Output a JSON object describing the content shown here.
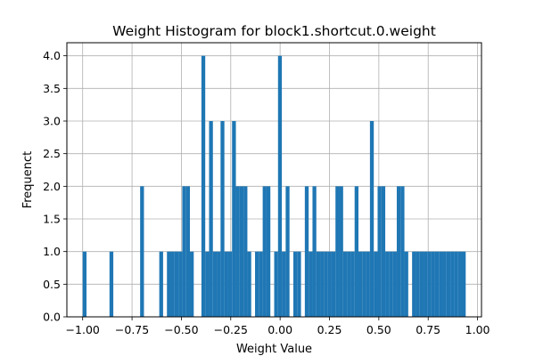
{
  "chart_data": {
    "type": "bar",
    "title": "Weight Histogram for block1.shortcut.0.weight",
    "xlabel": "Weight Value",
    "ylabel": "Frequenct",
    "xlim": [
      -1.08,
      1.02
    ],
    "ylim": [
      0,
      4.2
    ],
    "grid": true,
    "bar_color": "#1f77b4",
    "bin_edges": [
      -1.0,
      0.94
    ],
    "bin_count": 100,
    "xticks": [
      {
        "value": -1.0,
        "label": "−1.00"
      },
      {
        "value": -0.75,
        "label": "−0.75"
      },
      {
        "value": -0.5,
        "label": "−0.50"
      },
      {
        "value": -0.25,
        "label": "−0.25"
      },
      {
        "value": 0.0,
        "label": "0.00"
      },
      {
        "value": 0.25,
        "label": "0.25"
      },
      {
        "value": 0.5,
        "label": "0.50"
      },
      {
        "value": 0.75,
        "label": "0.75"
      },
      {
        "value": 1.0,
        "label": "1.00"
      }
    ],
    "yticks": [
      {
        "value": 0.0,
        "label": "0.0"
      },
      {
        "value": 0.5,
        "label": "0.5"
      },
      {
        "value": 1.0,
        "label": "1.0"
      },
      {
        "value": 1.5,
        "label": "1.5"
      },
      {
        "value": 2.0,
        "label": "2.0"
      },
      {
        "value": 2.5,
        "label": "2.5"
      },
      {
        "value": 3.0,
        "label": "3.0"
      },
      {
        "value": 3.5,
        "label": "3.5"
      },
      {
        "value": 4.0,
        "label": "4.0"
      }
    ],
    "values": [
      1,
      0,
      0,
      0,
      0,
      0,
      0,
      1,
      0,
      0,
      0,
      0,
      0,
      0,
      0,
      2,
      0,
      0,
      0,
      0,
      1,
      0,
      1,
      1,
      1,
      1,
      2,
      2,
      1,
      0,
      0,
      4,
      1,
      3,
      1,
      1,
      3,
      1,
      1,
      3,
      2,
      2,
      2,
      1,
      0,
      1,
      1,
      2,
      2,
      0,
      1,
      4,
      1,
      2,
      0,
      1,
      1,
      0,
      2,
      1,
      2,
      1,
      1,
      1,
      1,
      1,
      2,
      2,
      1,
      1,
      1,
      2,
      1,
      1,
      1,
      3,
      1,
      2,
      2,
      1,
      1,
      1,
      2,
      2,
      1,
      0,
      1,
      1,
      1,
      1,
      1,
      1,
      1,
      1,
      1,
      1,
      1,
      1,
      1,
      1
    ]
  }
}
